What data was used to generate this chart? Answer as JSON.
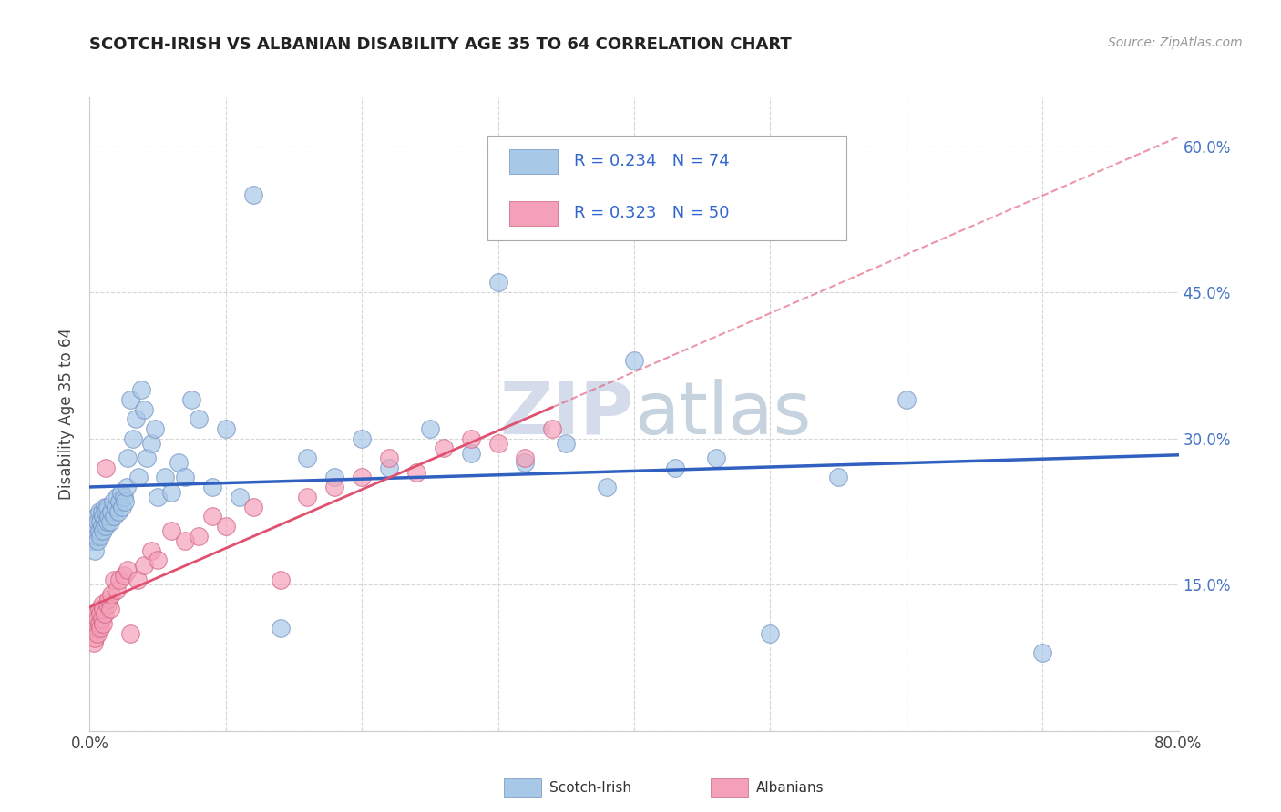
{
  "title": "SCOTCH-IRISH VS ALBANIAN DISABILITY AGE 35 TO 64 CORRELATION CHART",
  "source": "Source: ZipAtlas.com",
  "ylabel": "Disability Age 35 to 64",
  "xlim": [
    0.0,
    0.8
  ],
  "ylim": [
    0.0,
    0.65
  ],
  "xticks": [
    0.0,
    0.1,
    0.2,
    0.3,
    0.4,
    0.5,
    0.6,
    0.7,
    0.8
  ],
  "xticklabels": [
    "0.0%",
    "",
    "",
    "",
    "",
    "",
    "",
    "",
    "80.0%"
  ],
  "yticks": [
    0.0,
    0.15,
    0.3,
    0.45,
    0.6
  ],
  "yticklabels": [
    "",
    "15.0%",
    "30.0%",
    "45.0%",
    "60.0%"
  ],
  "scotch_irish_R": 0.234,
  "scotch_irish_N": 74,
  "albanian_R": 0.323,
  "albanian_N": 50,
  "scotch_irish_color": "#a8c8e8",
  "albanian_color": "#f4a0b8",
  "scotch_irish_line_color": "#3060c0",
  "albanian_line_color": "#e05070",
  "grid_color": "#cccccc",
  "background_color": "#ffffff",
  "watermark_color": "#d0d8e8",
  "scotch_irish_x": [
    0.002,
    0.003,
    0.004,
    0.005,
    0.005,
    0.006,
    0.006,
    0.007,
    0.007,
    0.008,
    0.008,
    0.009,
    0.009,
    0.01,
    0.01,
    0.011,
    0.011,
    0.012,
    0.012,
    0.013,
    0.013,
    0.014,
    0.015,
    0.016,
    0.017,
    0.018,
    0.019,
    0.02,
    0.021,
    0.022,
    0.023,
    0.024,
    0.025,
    0.026,
    0.027,
    0.028,
    0.03,
    0.032,
    0.034,
    0.036,
    0.038,
    0.04,
    0.042,
    0.045,
    0.048,
    0.05,
    0.055,
    0.06,
    0.065,
    0.07,
    0.075,
    0.08,
    0.09,
    0.1,
    0.11,
    0.12,
    0.14,
    0.16,
    0.18,
    0.2,
    0.22,
    0.25,
    0.28,
    0.3,
    0.32,
    0.35,
    0.38,
    0.4,
    0.43,
    0.46,
    0.5,
    0.55,
    0.6,
    0.7
  ],
  "scotch_irish_y": [
    0.195,
    0.21,
    0.185,
    0.2,
    0.22,
    0.195,
    0.215,
    0.205,
    0.225,
    0.2,
    0.215,
    0.21,
    0.225,
    0.205,
    0.22,
    0.215,
    0.23,
    0.21,
    0.225,
    0.215,
    0.23,
    0.22,
    0.215,
    0.225,
    0.235,
    0.22,
    0.23,
    0.24,
    0.225,
    0.235,
    0.245,
    0.23,
    0.24,
    0.235,
    0.25,
    0.28,
    0.34,
    0.3,
    0.32,
    0.26,
    0.35,
    0.33,
    0.28,
    0.295,
    0.31,
    0.24,
    0.26,
    0.245,
    0.275,
    0.26,
    0.34,
    0.32,
    0.25,
    0.31,
    0.24,
    0.55,
    0.105,
    0.28,
    0.26,
    0.3,
    0.27,
    0.31,
    0.285,
    0.46,
    0.275,
    0.295,
    0.25,
    0.38,
    0.27,
    0.28,
    0.1,
    0.26,
    0.34,
    0.08
  ],
  "albanian_x": [
    0.002,
    0.003,
    0.003,
    0.004,
    0.004,
    0.005,
    0.005,
    0.006,
    0.006,
    0.007,
    0.007,
    0.008,
    0.008,
    0.009,
    0.009,
    0.01,
    0.01,
    0.011,
    0.012,
    0.013,
    0.014,
    0.015,
    0.016,
    0.018,
    0.02,
    0.022,
    0.025,
    0.028,
    0.03,
    0.035,
    0.04,
    0.045,
    0.05,
    0.06,
    0.07,
    0.08,
    0.09,
    0.1,
    0.12,
    0.14,
    0.16,
    0.18,
    0.2,
    0.22,
    0.24,
    0.26,
    0.28,
    0.3,
    0.32,
    0.34
  ],
  "albanian_y": [
    0.1,
    0.09,
    0.11,
    0.095,
    0.115,
    0.105,
    0.12,
    0.1,
    0.115,
    0.11,
    0.125,
    0.105,
    0.12,
    0.115,
    0.13,
    0.11,
    0.125,
    0.12,
    0.27,
    0.13,
    0.135,
    0.125,
    0.14,
    0.155,
    0.145,
    0.155,
    0.16,
    0.165,
    0.1,
    0.155,
    0.17,
    0.185,
    0.175,
    0.205,
    0.195,
    0.2,
    0.22,
    0.21,
    0.23,
    0.155,
    0.24,
    0.25,
    0.26,
    0.28,
    0.265,
    0.29,
    0.3,
    0.295,
    0.28,
    0.31
  ],
  "legend_r1": "R = 0.234   N = 74",
  "legend_r2": "R = 0.323   N = 50"
}
